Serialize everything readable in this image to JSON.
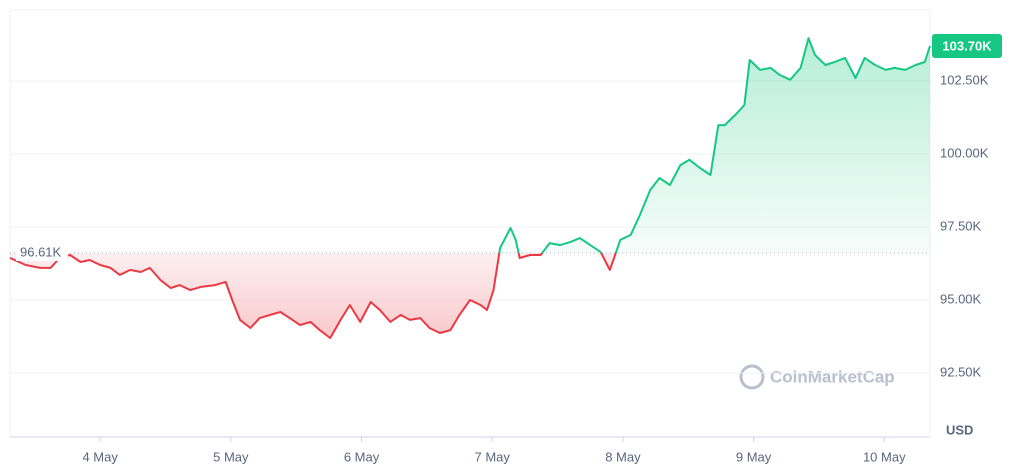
{
  "chart_data": {
    "type": "line",
    "currency": "USD",
    "watermark": "CoinMarketCap",
    "baseline": {
      "value": 96610,
      "label": "96.61K"
    },
    "current_price": {
      "value": 103700,
      "label": "103.70K"
    },
    "up_color": "#16c784",
    "down_color": "#ea3943",
    "grid": true,
    "xlim": [
      3.31,
      10.35
    ],
    "xticks": [
      {
        "value": 4,
        "label": "4 May"
      },
      {
        "value": 5,
        "label": "5 May"
      },
      {
        "value": 6,
        "label": "6 May"
      },
      {
        "value": 7,
        "label": "7 May"
      },
      {
        "value": 8,
        "label": "8 May"
      },
      {
        "value": 9,
        "label": "9 May"
      },
      {
        "value": 10,
        "label": "10 May"
      }
    ],
    "ylim": [
      90308,
      104932
    ],
    "yticks": [
      {
        "value": 92500,
        "label": "92.50K"
      },
      {
        "value": 95000,
        "label": "95.00K"
      },
      {
        "value": 97500,
        "label": "97.50K"
      },
      {
        "value": 100000,
        "label": "100.00K"
      },
      {
        "value": 102500,
        "label": "102.50K"
      }
    ],
    "series": [
      {
        "name": "Price",
        "x": [
          3.31,
          3.43,
          3.54,
          3.62,
          3.69,
          3.77,
          3.85,
          3.92,
          4.0,
          4.08,
          4.15,
          4.23,
          4.31,
          4.38,
          4.46,
          4.54,
          4.61,
          4.69,
          4.77,
          4.88,
          4.96,
          5.01,
          5.07,
          5.15,
          5.22,
          5.3,
          5.38,
          5.45,
          5.53,
          5.61,
          5.68,
          5.76,
          5.84,
          5.91,
          5.99,
          6.07,
          6.14,
          6.22,
          6.3,
          6.37,
          6.45,
          6.52,
          6.6,
          6.68,
          6.75,
          6.83,
          6.91,
          6.96,
          7.01,
          7.06,
          7.14,
          7.18,
          7.21,
          7.29,
          7.37,
          7.44,
          7.52,
          7.6,
          7.67,
          7.75,
          7.83,
          7.9,
          7.94,
          7.98,
          8.06,
          8.13,
          8.21,
          8.28,
          8.36,
          8.44,
          8.51,
          8.59,
          8.67,
          8.73,
          8.78,
          8.86,
          8.93,
          8.97,
          9.05,
          9.13,
          9.2,
          9.28,
          9.36,
          9.42,
          9.47,
          9.55,
          9.62,
          9.7,
          9.78,
          9.85,
          9.93,
          10.01,
          10.08,
          10.16,
          10.24,
          10.31,
          10.35
        ],
        "values": [
          96440,
          96200,
          96100,
          96100,
          96440,
          96540,
          96300,
          96370,
          96200,
          96100,
          95860,
          96030,
          95960,
          96100,
          95690,
          95410,
          95510,
          95340,
          95450,
          95510,
          95620,
          95000,
          94320,
          94040,
          94380,
          94490,
          94590,
          94380,
          94140,
          94250,
          93970,
          93700,
          94320,
          94830,
          94250,
          94930,
          94660,
          94250,
          94490,
          94320,
          94380,
          94040,
          93870,
          93970,
          94490,
          95000,
          94830,
          94660,
          95340,
          96780,
          97470,
          97060,
          96440,
          96540,
          96540,
          96950,
          96880,
          96990,
          97120,
          96880,
          96640,
          96030,
          96540,
          97060,
          97230,
          97910,
          98770,
          99180,
          98940,
          99620,
          99800,
          99520,
          99280,
          100990,
          100990,
          101340,
          101680,
          103220,
          102880,
          102950,
          102710,
          102540,
          102950,
          103970,
          103390,
          103050,
          103150,
          103290,
          102600,
          103290,
          103050,
          102880,
          102950,
          102880,
          103050,
          103150,
          103700
        ]
      }
    ]
  }
}
